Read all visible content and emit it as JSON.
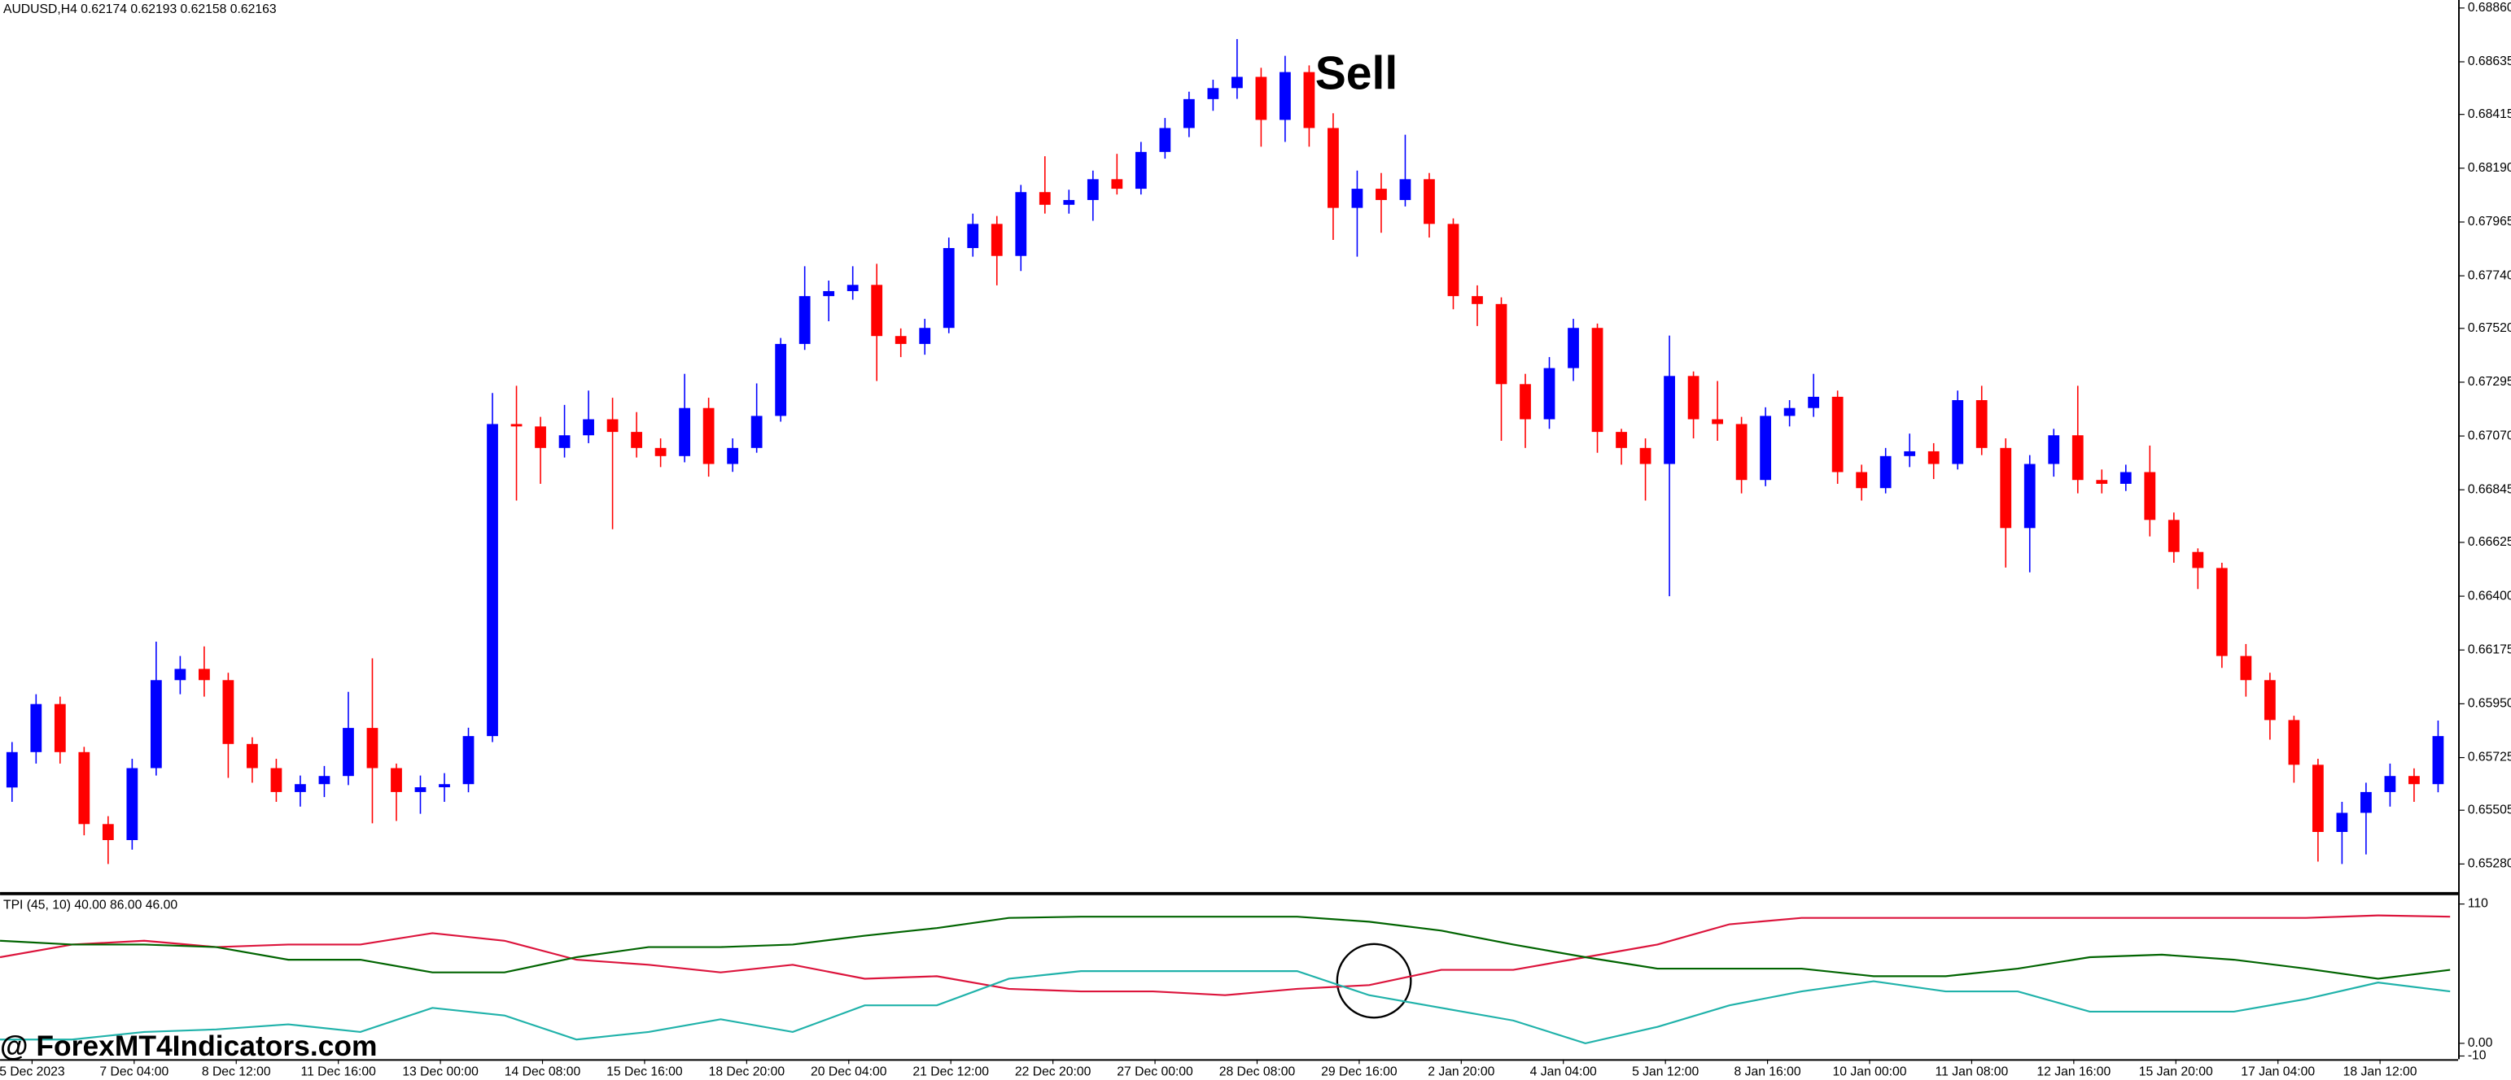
{
  "chart_data": [
    {
      "type": "candlestick",
      "title": "AUDUSD,H4  0.62174 0.62193 0.62158 0.62163",
      "annotation": "Sell",
      "up_color": "#0000ff",
      "down_color": "#ff0000",
      "ylim": [
        0.6528,
        0.6886
      ],
      "yticks": [
        {
          "value": 0.6886,
          "label": "0.68860"
        },
        {
          "value": 0.68635,
          "label": "0.68635"
        },
        {
          "value": 0.68415,
          "label": "0.68415"
        },
        {
          "value": 0.6819,
          "label": "0.68190"
        },
        {
          "value": 0.67965,
          "label": "0.67965"
        },
        {
          "value": 0.6774,
          "label": "0.67740"
        },
        {
          "value": 0.6752,
          "label": "0.67520"
        },
        {
          "value": 0.67295,
          "label": "0.67295"
        },
        {
          "value": 0.6707,
          "label": "0.67070"
        },
        {
          "value": 0.66845,
          "label": "0.66845"
        },
        {
          "value": 0.66625,
          "label": "0.66625"
        },
        {
          "value": 0.664,
          "label": "0.66400"
        },
        {
          "value": 0.66175,
          "label": "0.66175"
        },
        {
          "value": 0.6595,
          "label": "0.65950"
        },
        {
          "value": 0.65725,
          "label": "0.65725"
        },
        {
          "value": 0.65505,
          "label": "0.65505"
        },
        {
          "value": 0.6528,
          "label": "0.65280"
        }
      ],
      "x_labels": [
        "5 Dec 2023",
        "7 Dec 04:00",
        "8 Dec 12:00",
        "11 Dec 16:00",
        "13 Dec 00:00",
        "14 Dec 08:00",
        "15 Dec 16:00",
        "18 Dec 20:00",
        "20 Dec 04:00",
        "21 Dec 12:00",
        "22 Dec 20:00",
        "27 Dec 00:00",
        "28 Dec 08:00",
        "29 Dec 16:00",
        "2 Jan 20:00",
        "4 Jan 04:00",
        "5 Jan 12:00",
        "8 Jan 16:00",
        "10 Jan 00:00",
        "11 Jan 08:00",
        "12 Jan 16:00",
        "15 Jan 20:00",
        "17 Jan 04:00",
        "18 Jan 12:00"
      ],
      "candles": [
        [
          0.656,
          0.6579,
          0.6554,
          0.65748
        ],
        [
          0.65748,
          0.6599,
          0.657,
          0.65949
        ],
        [
          0.65949,
          0.6598,
          0.657,
          0.65748
        ],
        [
          0.65748,
          0.6577,
          0.654,
          0.65447
        ],
        [
          0.65447,
          0.6548,
          0.6528,
          0.6538
        ],
        [
          0.6538,
          0.6572,
          0.6534,
          0.65681
        ],
        [
          0.65681,
          0.6621,
          0.6565,
          0.66049
        ],
        [
          0.66049,
          0.6615,
          0.6599,
          0.66096
        ],
        [
          0.66096,
          0.6619,
          0.6598,
          0.66049
        ],
        [
          0.66049,
          0.6608,
          0.6564,
          0.65782
        ],
        [
          0.65782,
          0.6581,
          0.6562,
          0.65681
        ],
        [
          0.65681,
          0.6572,
          0.6554,
          0.65581
        ],
        [
          0.65581,
          0.6565,
          0.6552,
          0.65614
        ],
        [
          0.65614,
          0.6569,
          0.6556,
          0.65648
        ],
        [
          0.65648,
          0.66,
          0.6561,
          0.65849
        ],
        [
          0.65849,
          0.6614,
          0.6545,
          0.65681
        ],
        [
          0.65681,
          0.657,
          0.6546,
          0.65581
        ],
        [
          0.65581,
          0.6565,
          0.6549,
          0.65601
        ],
        [
          0.65601,
          0.6566,
          0.6554,
          0.65614
        ],
        [
          0.65614,
          0.6585,
          0.6558,
          0.65815
        ],
        [
          0.65815,
          0.6725,
          0.6579,
          0.6712
        ],
        [
          0.6712,
          0.6728,
          0.668,
          0.6711
        ],
        [
          0.6711,
          0.6715,
          0.6687,
          0.6702
        ],
        [
          0.6702,
          0.672,
          0.6698,
          0.67073
        ],
        [
          0.67073,
          0.6726,
          0.6704,
          0.6714
        ],
        [
          0.6714,
          0.6723,
          0.6668,
          0.67087
        ],
        [
          0.67087,
          0.6717,
          0.6698,
          0.6702
        ],
        [
          0.6702,
          0.6706,
          0.6694,
          0.66986
        ],
        [
          0.66986,
          0.6733,
          0.6696,
          0.67187
        ],
        [
          0.67187,
          0.6723,
          0.669,
          0.66953
        ],
        [
          0.66953,
          0.6706,
          0.6692,
          0.6702
        ],
        [
          0.6702,
          0.6729,
          0.67,
          0.67154
        ],
        [
          0.67154,
          0.6748,
          0.6713,
          0.67455
        ],
        [
          0.67455,
          0.6778,
          0.6743,
          0.67655
        ],
        [
          0.67655,
          0.6772,
          0.6755,
          0.67676
        ],
        [
          0.67676,
          0.6778,
          0.6764,
          0.67702
        ],
        [
          0.67702,
          0.6779,
          0.673,
          0.67488
        ],
        [
          0.67488,
          0.6752,
          0.674,
          0.67455
        ],
        [
          0.67455,
          0.6756,
          0.6741,
          0.67522
        ],
        [
          0.67522,
          0.679,
          0.675,
          0.67856
        ],
        [
          0.67856,
          0.68,
          0.6782,
          0.67957
        ],
        [
          0.67957,
          0.6799,
          0.677,
          0.67823
        ],
        [
          0.67823,
          0.6812,
          0.6776,
          0.6809
        ],
        [
          0.6809,
          0.6824,
          0.68,
          0.68037
        ],
        [
          0.68037,
          0.681,
          0.68,
          0.68057
        ],
        [
          0.68057,
          0.6818,
          0.6797,
          0.68144
        ],
        [
          0.68144,
          0.6825,
          0.6808,
          0.68104
        ],
        [
          0.68104,
          0.683,
          0.6808,
          0.68258
        ],
        [
          0.68258,
          0.684,
          0.6823,
          0.68358
        ],
        [
          0.68358,
          0.6851,
          0.6832,
          0.68479
        ],
        [
          0.68479,
          0.6856,
          0.6843,
          0.68525
        ],
        [
          0.68525,
          0.6873,
          0.6848,
          0.68572
        ],
        [
          0.68572,
          0.6861,
          0.6828,
          0.68392
        ],
        [
          0.68392,
          0.6866,
          0.683,
          0.68592
        ],
        [
          0.68592,
          0.6862,
          0.6828,
          0.68358
        ],
        [
          0.68358,
          0.6842,
          0.6789,
          0.68024
        ],
        [
          0.68024,
          0.6818,
          0.6782,
          0.68104
        ],
        [
          0.68104,
          0.6817,
          0.6792,
          0.68057
        ],
        [
          0.68057,
          0.6833,
          0.6803,
          0.68144
        ],
        [
          0.68144,
          0.6817,
          0.679,
          0.67957
        ],
        [
          0.67957,
          0.6798,
          0.676,
          0.67655
        ],
        [
          0.67655,
          0.677,
          0.6753,
          0.67622
        ],
        [
          0.67622,
          0.6765,
          0.6705,
          0.67287
        ],
        [
          0.67287,
          0.6733,
          0.6702,
          0.6714
        ],
        [
          0.6714,
          0.674,
          0.671,
          0.67354
        ],
        [
          0.67354,
          0.6756,
          0.673,
          0.67522
        ],
        [
          0.67522,
          0.6754,
          0.67,
          0.67087
        ],
        [
          0.67087,
          0.671,
          0.6695,
          0.6702
        ],
        [
          0.6702,
          0.6706,
          0.668,
          0.66953
        ],
        [
          0.66953,
          0.6749,
          0.664,
          0.67321
        ],
        [
          0.67321,
          0.6734,
          0.6706,
          0.6714
        ],
        [
          0.6714,
          0.673,
          0.6705,
          0.6712
        ],
        [
          0.6712,
          0.6715,
          0.6683,
          0.66886
        ],
        [
          0.66886,
          0.6719,
          0.6686,
          0.67154
        ],
        [
          0.67154,
          0.6722,
          0.6711,
          0.67187
        ],
        [
          0.67187,
          0.6733,
          0.6715,
          0.67234
        ],
        [
          0.67234,
          0.6726,
          0.6687,
          0.66919
        ],
        [
          0.66919,
          0.6695,
          0.668,
          0.66852
        ],
        [
          0.66852,
          0.6702,
          0.6683,
          0.66986
        ],
        [
          0.66986,
          0.6708,
          0.6694,
          0.67006
        ],
        [
          0.67006,
          0.6704,
          0.6689,
          0.66953
        ],
        [
          0.66953,
          0.6726,
          0.6693,
          0.6722
        ],
        [
          0.6722,
          0.6728,
          0.6699,
          0.6702
        ],
        [
          0.6702,
          0.6706,
          0.6652,
          0.66685
        ],
        [
          0.66685,
          0.6699,
          0.665,
          0.66953
        ],
        [
          0.66953,
          0.671,
          0.669,
          0.67073
        ],
        [
          0.67073,
          0.6728,
          0.6683,
          0.66886
        ],
        [
          0.66886,
          0.6693,
          0.6683,
          0.6687
        ],
        [
          0.6687,
          0.6695,
          0.6684,
          0.66919
        ],
        [
          0.66919,
          0.6703,
          0.6665,
          0.66719
        ],
        [
          0.66719,
          0.6675,
          0.6654,
          0.66585
        ],
        [
          0.66585,
          0.666,
          0.6643,
          0.66518
        ],
        [
          0.66518,
          0.6654,
          0.661,
          0.6615
        ],
        [
          0.6615,
          0.662,
          0.6598,
          0.66049
        ],
        [
          0.66049,
          0.6608,
          0.658,
          0.65882
        ],
        [
          0.65882,
          0.659,
          0.6562,
          0.65695
        ],
        [
          0.65695,
          0.6572,
          0.6529,
          0.65414
        ],
        [
          0.65414,
          0.6554,
          0.6528,
          0.65494
        ],
        [
          0.65494,
          0.6562,
          0.6532,
          0.65581
        ],
        [
          0.65581,
          0.657,
          0.6552,
          0.65648
        ],
        [
          0.65648,
          0.6568,
          0.6554,
          0.65614
        ],
        [
          0.65614,
          0.6588,
          0.6558,
          0.65815
        ]
      ]
    },
    {
      "type": "line",
      "title": "TPI (45, 10) 40.00 86.00 46.00",
      "ylim": [
        -10,
        110
      ],
      "yticks": [
        110,
        {
          "value": 0,
          "label": "0.00"
        },
        -10
      ],
      "series": [
        {
          "color": "#dc143c",
          "values": [
            68,
            78,
            81,
            76,
            78,
            78,
            87,
            81,
            66,
            62,
            56,
            62,
            51,
            53,
            43,
            41,
            41,
            38,
            43,
            46,
            58,
            58,
            68,
            78,
            94,
            99,
            99,
            99,
            99,
            99,
            99,
            99,
            99,
            101,
            100
          ]
        },
        {
          "color": "#006400",
          "values": [
            81,
            78,
            78,
            76,
            66,
            66,
            56,
            56,
            68,
            76,
            76,
            78,
            85,
            91,
            99,
            100,
            100,
            100,
            100,
            96,
            89,
            78,
            68,
            59,
            59,
            59,
            53,
            53,
            59,
            68,
            70,
            66,
            59,
            51,
            58
          ]
        },
        {
          "color": "#20b2aa",
          "values": [
            3,
            3,
            9,
            11,
            15,
            9,
            28,
            22,
            3,
            9,
            19,
            9,
            30,
            30,
            51,
            57,
            57,
            57,
            57,
            38,
            28,
            18,
            0,
            13,
            30,
            41,
            49,
            41,
            41,
            25,
            25,
            25,
            35,
            48,
            41
          ]
        }
      ]
    }
  ],
  "watermark": "@ ForexMT4Indicators.com"
}
